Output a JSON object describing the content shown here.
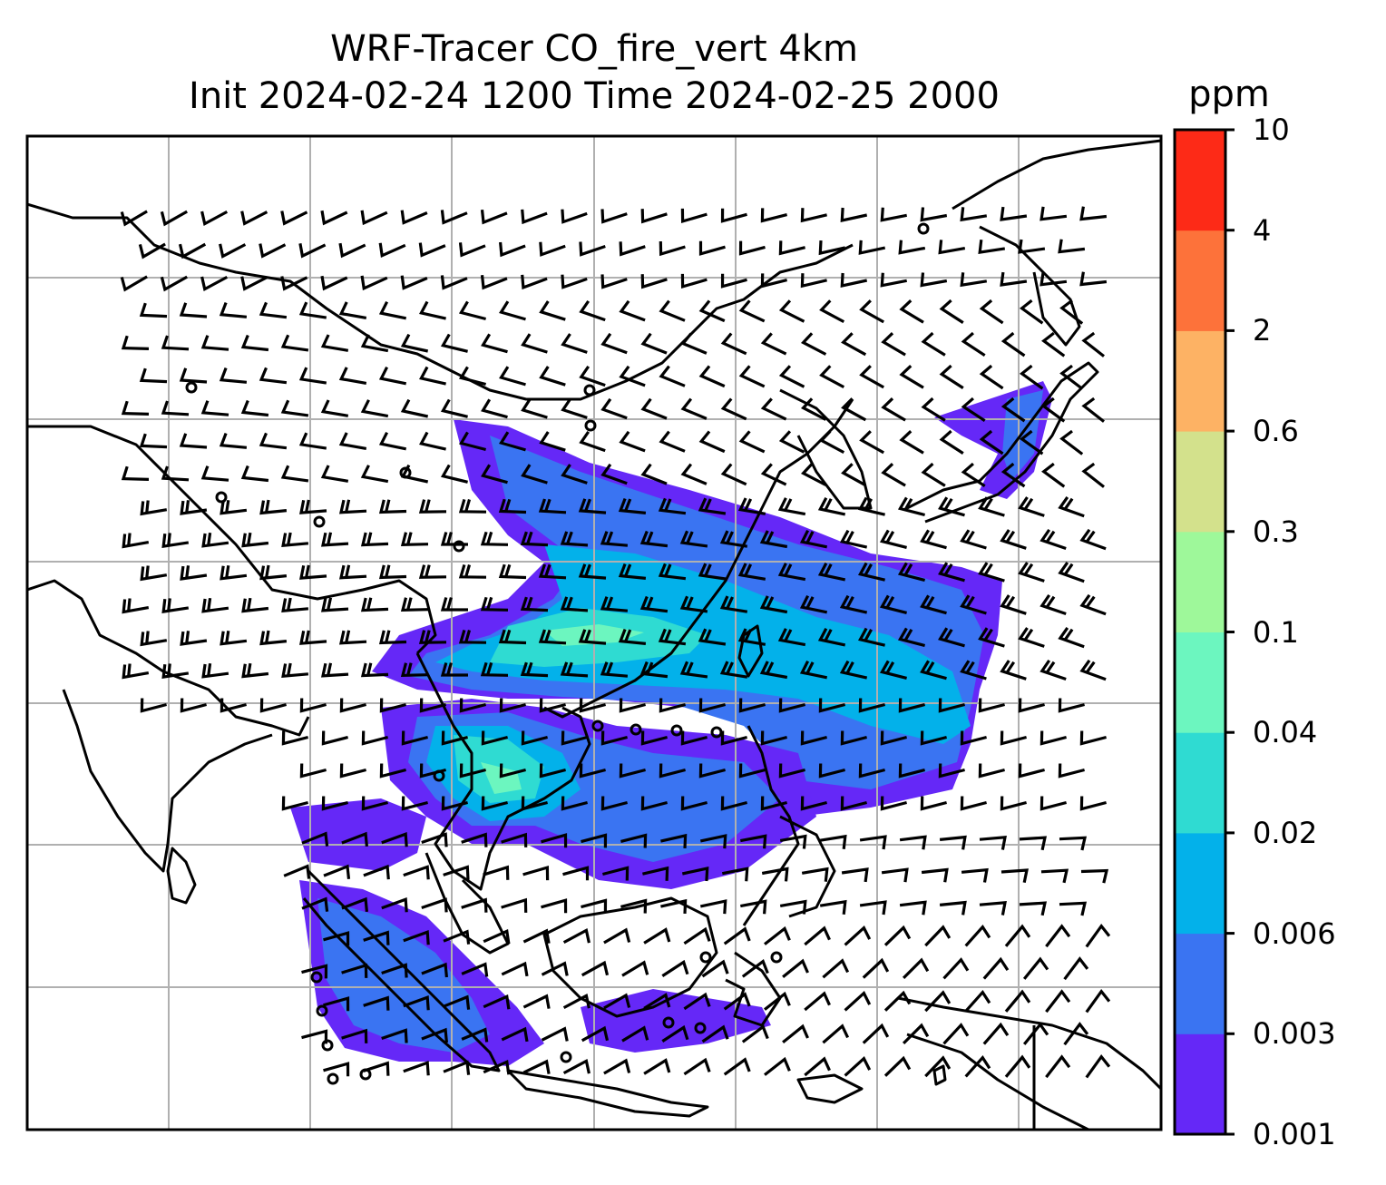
{
  "title": {
    "line1": "WRF-Tracer CO_fire_vert 4km",
    "line2": "Init 2024-02-24 1200 Time 2024-02-25 2000"
  },
  "colorbar": {
    "unit": "ppm",
    "levels": [
      "0.001",
      "0.003",
      "0.006",
      "0.02",
      "0.04",
      "0.1",
      "0.3",
      "0.6",
      "2",
      "4",
      "10"
    ],
    "colors": [
      "#6528f7",
      "#3a74f2",
      "#03b1ea",
      "#2fdbd2",
      "#6cf6bf",
      "#9ef89a",
      "#d3e18c",
      "#fdb264",
      "#fd723a",
      "#fd2a17"
    ]
  },
  "map": {
    "coastline_color": "#000000",
    "gridline_color": "#b0b0b0",
    "wind_barb_color": "#000000",
    "region": "Southeast Asia"
  }
}
